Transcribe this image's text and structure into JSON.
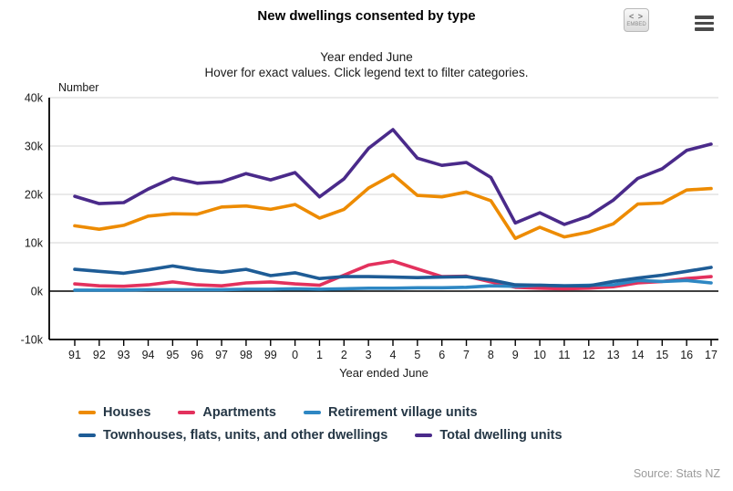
{
  "header": {
    "title": "New dwellings consented by type",
    "embed_icon": "< >",
    "embed_label": "EMBED"
  },
  "subtitle": {
    "line1": "Year ended June",
    "line2": "Hover for exact values. Click legend text to filter categories."
  },
  "source": "Source: Stats NZ",
  "chart_data": {
    "type": "line",
    "title": "New dwellings consented by type",
    "xlabel": "Year ended June",
    "ylabel": "Number",
    "grid": true,
    "legend_position": "bottom",
    "ylim": [
      -10000,
      40000
    ],
    "y_ticks": [
      {
        "label": "40k",
        "value": 40000
      },
      {
        "label": "30k",
        "value": 30000
      },
      {
        "label": "20k",
        "value": 20000
      },
      {
        "label": "10k",
        "value": 10000
      },
      {
        "label": "0k",
        "value": 0
      },
      {
        "label": "-10k",
        "value": -10000
      }
    ],
    "categories": [
      "91",
      "92",
      "93",
      "94",
      "95",
      "96",
      "97",
      "98",
      "99",
      "0",
      "1",
      "2",
      "3",
      "4",
      "5",
      "6",
      "7",
      "8",
      "9",
      "10",
      "11",
      "12",
      "13",
      "14",
      "15",
      "16",
      "17"
    ],
    "series": [
      {
        "name": "Houses",
        "color": "#ED8B00",
        "values": [
          13500,
          12800,
          13600,
          15500,
          16000,
          15900,
          17400,
          17600,
          16900,
          17900,
          15100,
          16900,
          21300,
          24100,
          19800,
          19500,
          20500,
          18700,
          10900,
          13200,
          11200,
          12200,
          13900,
          18000,
          18200,
          20900,
          21200
        ]
      },
      {
        "name": "Apartments",
        "color": "#E3315D",
        "values": [
          1500,
          1100,
          1000,
          1300,
          1900,
          1300,
          1100,
          1700,
          1900,
          1500,
          1200,
          3300,
          5400,
          6200,
          4600,
          3000,
          3100,
          1900,
          800,
          600,
          500,
          600,
          900,
          1700,
          2000,
          2600,
          3000
        ]
      },
      {
        "name": "Retirement village units",
        "color": "#2E87C3",
        "values": [
          200,
          200,
          200,
          300,
          300,
          300,
          300,
          400,
          400,
          500,
          400,
          500,
          600,
          600,
          700,
          700,
          800,
          1100,
          1000,
          1200,
          1100,
          1200,
          1300,
          2200,
          2000,
          2200,
          1700
        ]
      },
      {
        "name": "Townhouses, flats, units, and other dwellings",
        "color": "#1E5C96",
        "values": [
          4500,
          4100,
          3700,
          4400,
          5200,
          4400,
          3900,
          4500,
          3200,
          3800,
          2600,
          3000,
          3000,
          2900,
          2800,
          2900,
          3000,
          2300,
          1300,
          1200,
          1100,
          1100,
          2000,
          2700,
          3300,
          4100,
          4900
        ]
      },
      {
        "name": "Total dwelling units",
        "color": "#4A2A8A",
        "values": [
          19600,
          18100,
          18300,
          21100,
          23400,
          22300,
          22600,
          24300,
          23000,
          24500,
          19500,
          23200,
          29500,
          33400,
          27500,
          26000,
          26600,
          23500,
          14100,
          16200,
          13800,
          15500,
          18800,
          23300,
          25300,
          29100,
          30400
        ]
      }
    ]
  }
}
